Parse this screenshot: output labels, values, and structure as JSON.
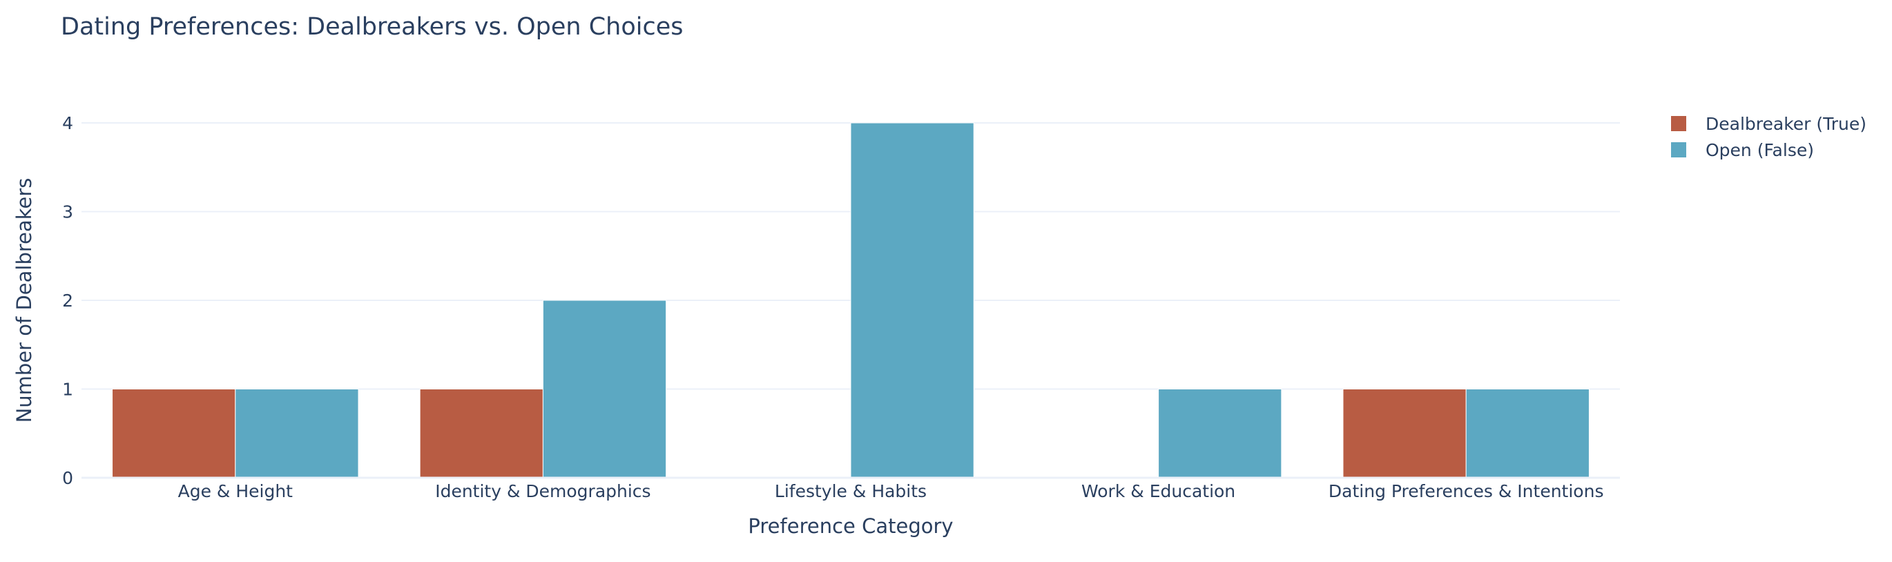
{
  "chart_data": {
    "type": "bar",
    "barmode": "group",
    "title": "Dating Preferences: Dealbreakers vs. Open Choices",
    "xlabel": "Preference Category",
    "ylabel": "Number of Dealbreakers",
    "categories": [
      "Age & Height",
      "Identity & Demographics",
      "Lifestyle & Habits",
      "Work & Education",
      "Dating Preferences & Intentions"
    ],
    "series": [
      {
        "name": "Dealbreaker (True)",
        "color": "#b85c43",
        "values": [
          1,
          1,
          0,
          0,
          1
        ]
      },
      {
        "name": "Open (False)",
        "color": "#5ca8c2",
        "values": [
          1,
          2,
          4,
          1,
          1
        ]
      }
    ],
    "ylim": [
      0,
      4
    ],
    "yticks": [
      0,
      1,
      2,
      3,
      4
    ],
    "grid": true,
    "legend_position": "top-right"
  }
}
